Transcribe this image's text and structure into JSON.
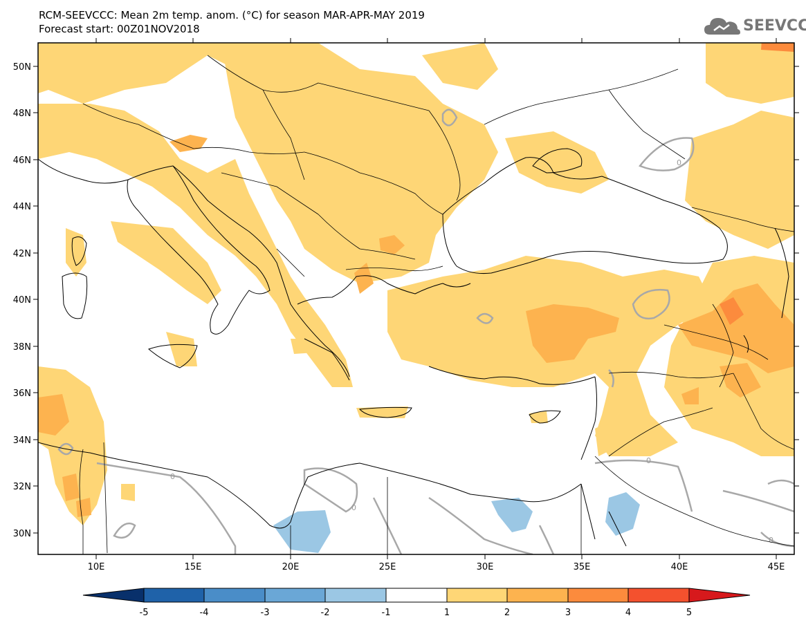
{
  "header": {
    "title_line1": "RCM-SEEVCCC: Mean 2m temp. anom. (°C) for season MAR-APR-MAY 2019",
    "title_line2": "Forecast start: 00Z01NOV2018"
  },
  "logo": {
    "text": "SEEVCCC",
    "icon": "cloud-icon"
  },
  "map": {
    "lat_labels": [
      "50N",
      "48N",
      "46N",
      "44N",
      "42N",
      "40N",
      "38N",
      "36N",
      "34N",
      "32N",
      "30N"
    ],
    "lon_labels": [
      "10E",
      "15E",
      "20E",
      "25E",
      "30E",
      "35E",
      "40E",
      "45E"
    ],
    "contour_label": "0"
  },
  "colorbar": {
    "tick_labels": [
      "-5",
      "-4",
      "-3",
      "-2",
      "-1",
      "1",
      "2",
      "3",
      "4",
      "5"
    ],
    "colors": [
      "#08306b",
      "#1f62a9",
      "#4a8dc8",
      "#6aa7d6",
      "#9bc7e4",
      "#ffffff",
      "#fed676",
      "#fdb34f",
      "#fc8b3d",
      "#f4512e",
      "#d7191c"
    ]
  }
}
